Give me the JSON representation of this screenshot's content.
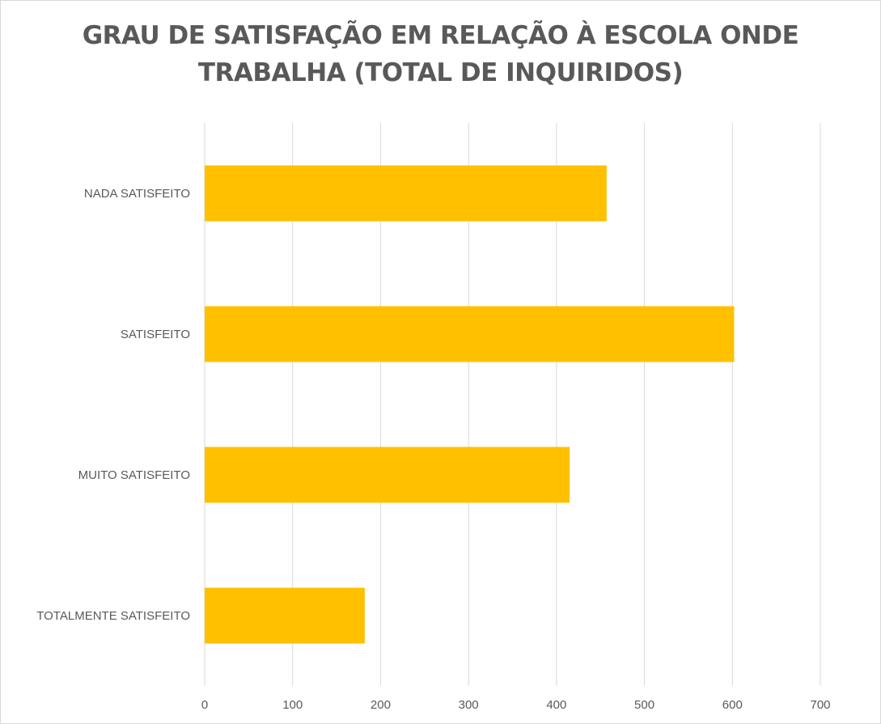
{
  "chart_data": {
    "type": "bar",
    "orientation": "horizontal",
    "title_lines": [
      "GRAU DE SATISFAÇÃO EM RELAÇÃO À ESCOLA ONDE",
      "TRABALHA (TOTAL DE INQUIRIDOS)"
    ],
    "categories": [
      "NADA SATISFEITO",
      "SATISFEITO",
      "MUITO SATISFEITO",
      "TOTALMENTE SATISFEITO"
    ],
    "values": [
      457,
      602,
      415,
      182
    ],
    "xlim": [
      0,
      700
    ],
    "xticks": [
      "0",
      "100",
      "200",
      "300",
      "400",
      "500",
      "600",
      "700"
    ],
    "grid": true,
    "legend": "none",
    "bar_color": "#FFC000",
    "grid_color": "#d9d9d9",
    "text_color": "#595959"
  }
}
